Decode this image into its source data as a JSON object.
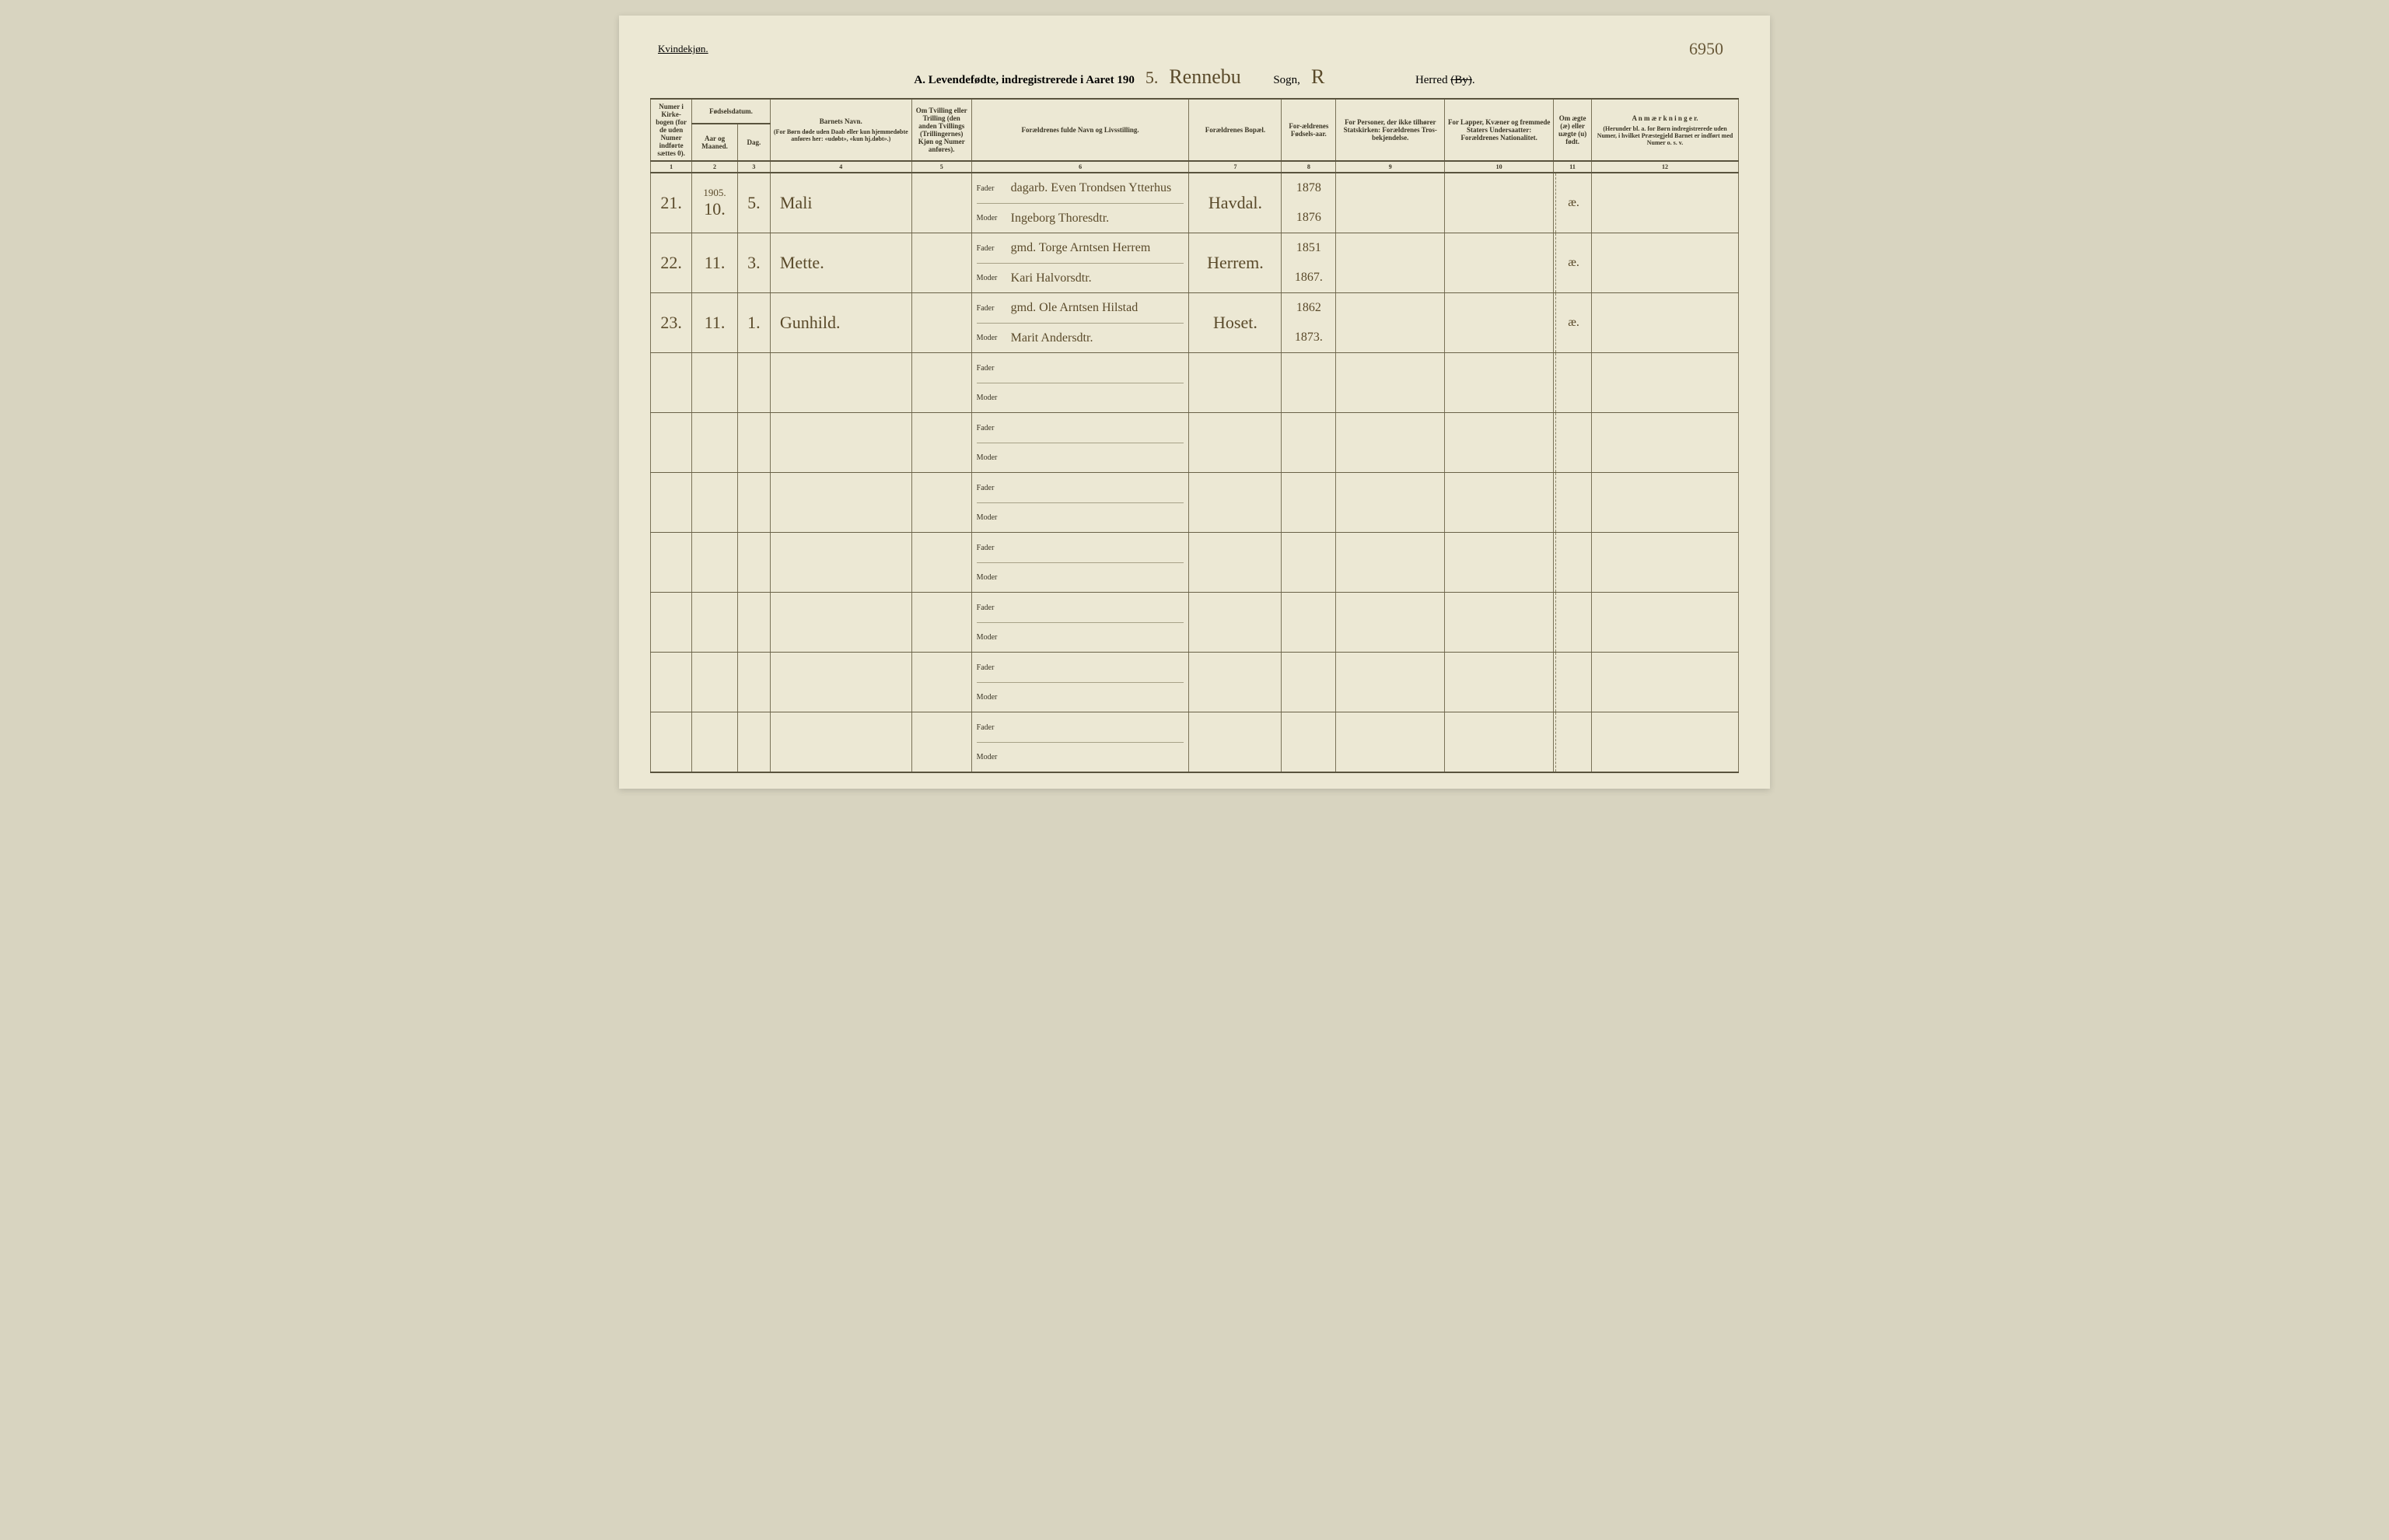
{
  "header": {
    "gender_label": "Kvindekjøn.",
    "page_number": "6950",
    "title_prefix": "A.  Levendefødte, indregistrerede i Aaret 190",
    "year_suffix": "5.",
    "sogn_fill": "Rennebu",
    "sogn_label": "Sogn,",
    "herred_fill": "R",
    "herred_label_pre": "Herred ",
    "herred_label_strike": "(By)",
    "herred_label_post": "."
  },
  "columns": {
    "c1": {
      "head": "Numer i Kirke-bogen (for de uden Numer indførte sættes 0).",
      "num": "1"
    },
    "c2": {
      "head": "Fødselsdatum.",
      "sub_a": "Aar og Maaned.",
      "sub_b": "Dag.",
      "num_a": "2",
      "num_b": "3"
    },
    "c4": {
      "head": "Barnets Navn.",
      "sub": "(For Børn døde uden Daab eller kun hjemmedøbte anføres her: «udøbt», «kun hj.døbt».)",
      "num": "4"
    },
    "c5": {
      "head": "Om Tvilling eller Trilling (den anden Tvillings (Trillingernes) Kjøn og Numer anføres).",
      "num": "5"
    },
    "c6": {
      "head": "Forældrenes fulde Navn og Livsstilling.",
      "num": "6",
      "fader": "Fader",
      "moder": "Moder"
    },
    "c7": {
      "head": "Forældrenes Bopæl.",
      "num": "7"
    },
    "c8": {
      "head": "For-ældrenes Fødsels-aar.",
      "num": "8"
    },
    "c9": {
      "head": "For Personer, der ikke tilhører Statskirken: Forældrenes Tros-bekjendelse.",
      "num": "9"
    },
    "c10": {
      "head": "For Lapper, Kvæner og fremmede Staters Undersaatter: Forældrenes Nationalitet.",
      "num": "10"
    },
    "c11": {
      "head": "Om ægte (æ) eller uægte (u) født.",
      "num": "11"
    },
    "c12": {
      "head": "A n m æ r k n i n g e r.",
      "sub": "(Herunder bl. a. for Børn indregistrerede uden Numer, i hvilket Præstegjeld Barnet er indført med Numer o. s. v.",
      "num": "12"
    }
  },
  "year_cell_top": "1905.",
  "rows": [
    {
      "num": "21.",
      "month": "10.",
      "day": "5.",
      "name": "Mali",
      "fader": "dagarb. Even Trondsen Ytterhus",
      "moder": "Ingeborg Thoresdtr.",
      "bopael": "Havdal.",
      "f_year": "1878",
      "m_year": "1876",
      "legit": "æ."
    },
    {
      "num": "22.",
      "month": "11.",
      "day": "3.",
      "name": "Mette.",
      "fader": "gmd. Torge Arntsen Herrem",
      "moder": "Kari Halvorsdtr.",
      "bopael": "Herrem.",
      "f_year": "1851",
      "m_year": "1867.",
      "legit": "æ."
    },
    {
      "num": "23.",
      "month": "11.",
      "day": "1.",
      "name": "Gunhild.",
      "fader": "gmd. Ole Arntsen Hilstad",
      "moder": "Marit Andersdtr.",
      "bopael": "Hoset.",
      "f_year": "1862",
      "m_year": "1873.",
      "legit": "æ."
    },
    {
      "num": "",
      "month": "",
      "day": "",
      "name": "",
      "fader": "",
      "moder": "",
      "bopael": "",
      "f_year": "",
      "m_year": "",
      "legit": ""
    },
    {
      "num": "",
      "month": "",
      "day": "",
      "name": "",
      "fader": "",
      "moder": "",
      "bopael": "",
      "f_year": "",
      "m_year": "",
      "legit": ""
    },
    {
      "num": "",
      "month": "",
      "day": "",
      "name": "",
      "fader": "",
      "moder": "",
      "bopael": "",
      "f_year": "",
      "m_year": "",
      "legit": ""
    },
    {
      "num": "",
      "month": "",
      "day": "",
      "name": "",
      "fader": "",
      "moder": "",
      "bopael": "",
      "f_year": "",
      "m_year": "",
      "legit": ""
    },
    {
      "num": "",
      "month": "",
      "day": "",
      "name": "",
      "fader": "",
      "moder": "",
      "bopael": "",
      "f_year": "",
      "m_year": "",
      "legit": ""
    },
    {
      "num": "",
      "month": "",
      "day": "",
      "name": "",
      "fader": "",
      "moder": "",
      "bopael": "",
      "f_year": "",
      "m_year": "",
      "legit": ""
    },
    {
      "num": "",
      "month": "",
      "day": "",
      "name": "",
      "fader": "",
      "moder": "",
      "bopael": "",
      "f_year": "",
      "m_year": "",
      "legit": ""
    }
  ],
  "style": {
    "page_bg": "#ece8d4",
    "border": "#7a7258",
    "text": "#3a3525",
    "hand": "#5a4a2a",
    "col_widths_pct": [
      3.8,
      4.2,
      3.0,
      13.0,
      5.5,
      20.0,
      8.5,
      5.0,
      10.0,
      10.0,
      3.5,
      13.5
    ]
  }
}
